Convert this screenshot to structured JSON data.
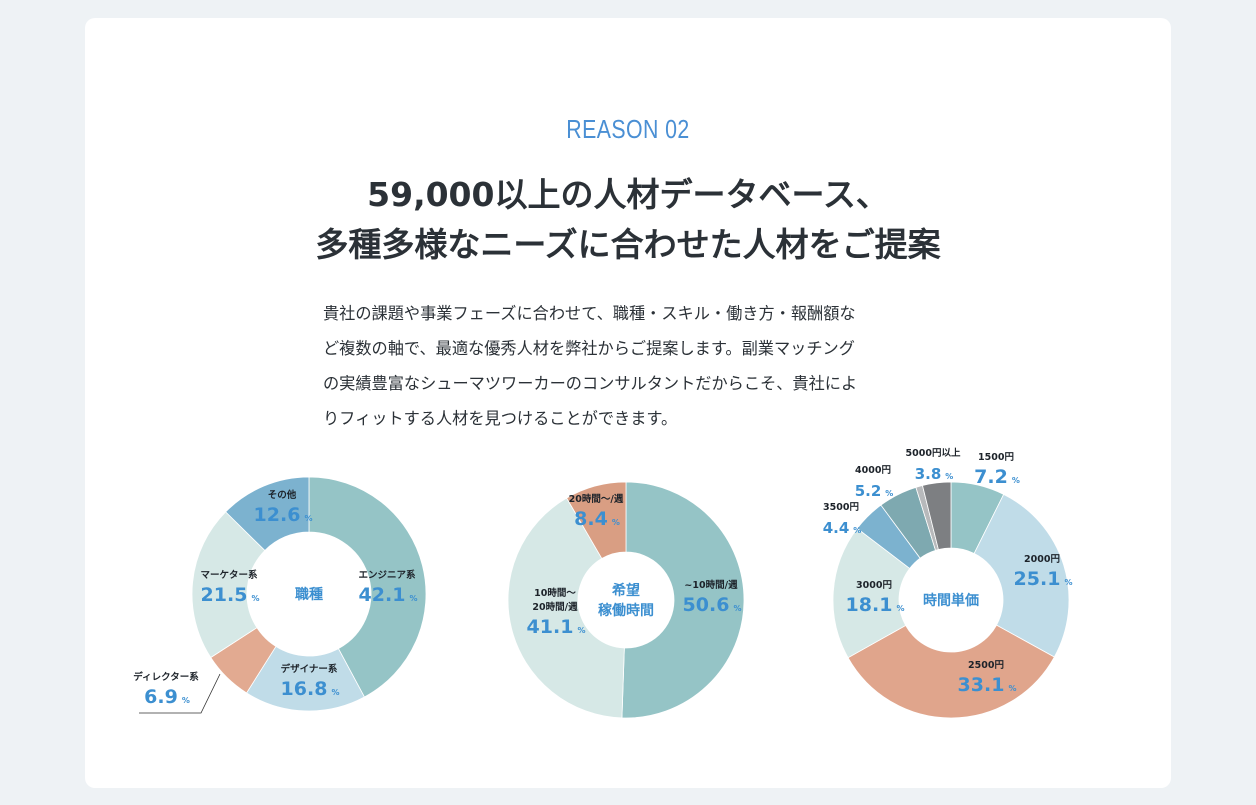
{
  "section": {
    "eyebrow": "REASON 02",
    "eyebrow_color": "#4a8fd4",
    "headline_lines": [
      "59,000以上の人材データベース、",
      "多種多様なニーズに合わせた人材をご提案"
    ],
    "body_lines": [
      "貴社の課題や事業フェーズに合わせて、職種・スキル・働き方・報酬額な",
      "ど複数の軸で、最適な優秀人材を弊社からご提案します。副業マッチング",
      "の実績豊富なシューマツワーカーのコンサルタントだからこそ、貴社によ",
      "りフィットする人材を見つけることができます。"
    ]
  },
  "chart_data": [
    {
      "type": "pie",
      "title": "職種",
      "unit": "%",
      "slices": [
        {
          "label": "エンジニア系",
          "value": 42.1,
          "color": "#95c4c6"
        },
        {
          "label": "デザイナー系",
          "value": 16.8,
          "color": "#c0dce8"
        },
        {
          "label": "ディレクター系",
          "value": 6.9,
          "color": "#e2aa91"
        },
        {
          "label": "マーケター系",
          "value": 21.5,
          "color": "#d6e8e6"
        },
        {
          "label": "その他",
          "value": 12.6,
          "color": "#7cb2cf"
        }
      ]
    },
    {
      "type": "pie",
      "title": "希望稼働時間",
      "title_lines": [
        "希望",
        "稼働時間"
      ],
      "unit": "%",
      "slices": [
        {
          "label": "~10時間/週",
          "value": 50.6,
          "color": "#95c4c6"
        },
        {
          "label": "10時間～20時間/週",
          "label_lines": [
            "10時間～",
            "20時間/週"
          ],
          "value": 41.1,
          "color": "#d6e8e6"
        },
        {
          "label": "20時間～/週",
          "value": 8.4,
          "color": "#d99e83"
        }
      ]
    },
    {
      "type": "pie",
      "title": "時間単価",
      "unit": "%",
      "slices": [
        {
          "label": "1500円",
          "value": 7.2,
          "color": "#95c4c6"
        },
        {
          "label": "2000円",
          "value": 25.1,
          "color": "#c0dce8"
        },
        {
          "label": "2500円",
          "value": 33.1,
          "color": "#e0a58c"
        },
        {
          "label": "3000円",
          "value": 18.1,
          "color": "#d6e8e6"
        },
        {
          "label": "3500円",
          "value": 4.4,
          "color": "#7cb2cf"
        },
        {
          "label": "4000円",
          "value": 5.2,
          "color": "#7ea9b0"
        },
        {
          "label": "",
          "value": 0.9,
          "color": "#b7b9bb"
        },
        {
          "label": "5000円以上",
          "value": 3.8,
          "color": "#7d7f82"
        }
      ]
    }
  ],
  "colors": {
    "label_dark": "#1d232a",
    "label_value": "#3c8fd0",
    "center_label": "#3c8fd0"
  }
}
